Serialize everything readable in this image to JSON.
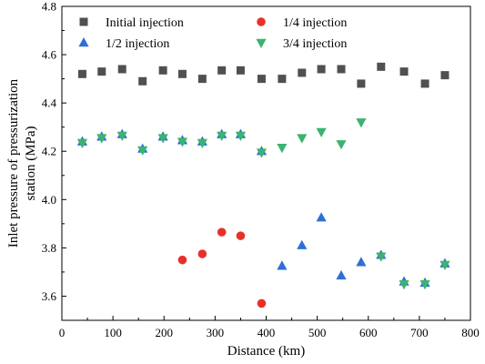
{
  "chart_data": {
    "type": "scatter",
    "xlabel": "Distance (km)",
    "ylabel": "Inlet pressure of pressurization station (MPa)",
    "xlim": [
      0,
      800
    ],
    "ylim": [
      3.5,
      4.8
    ],
    "x_ticks": [
      0,
      100,
      200,
      300,
      400,
      500,
      600,
      700,
      800
    ],
    "y_ticks": [
      3.6,
      3.8,
      4.0,
      4.2,
      4.4,
      4.6,
      4.8
    ],
    "y_tick_labels": [
      "3.6",
      "3.8",
      "4.0",
      "4.2",
      "4.4",
      "4.6",
      "4.8"
    ],
    "legend_placement": "top",
    "series": [
      {
        "name": "Initial injection",
        "marker": "square",
        "color": "#505050",
        "points": [
          [
            40,
            4.52
          ],
          [
            78,
            4.53
          ],
          [
            118,
            4.54
          ],
          [
            158,
            4.49
          ],
          [
            198,
            4.535
          ],
          [
            236,
            4.52
          ],
          [
            275,
            4.5
          ],
          [
            313,
            4.535
          ],
          [
            350,
            4.535
          ],
          [
            391,
            4.5
          ],
          [
            431,
            4.5
          ],
          [
            470,
            4.525
          ],
          [
            508,
            4.54
          ],
          [
            547,
            4.54
          ],
          [
            586,
            4.48
          ],
          [
            625,
            4.55
          ],
          [
            670,
            4.53
          ],
          [
            711,
            4.48
          ],
          [
            750,
            4.515
          ]
        ]
      },
      {
        "name": "1/4 injection",
        "marker": "circle",
        "color": "#e8302b",
        "points": [
          [
            236,
            3.75
          ],
          [
            275,
            3.775
          ],
          [
            313,
            3.865
          ],
          [
            350,
            3.85
          ],
          [
            391,
            3.57
          ]
        ]
      },
      {
        "name": "1/2 injection",
        "marker": "triangle-up",
        "color": "#2f6fd6",
        "points": [
          [
            40,
            4.24
          ],
          [
            78,
            4.26
          ],
          [
            118,
            4.27
          ],
          [
            158,
            4.21
          ],
          [
            198,
            4.26
          ],
          [
            236,
            4.245
          ],
          [
            275,
            4.24
          ],
          [
            313,
            4.27
          ],
          [
            350,
            4.27
          ],
          [
            391,
            4.2
          ],
          [
            431,
            3.725
          ],
          [
            470,
            3.81
          ],
          [
            508,
            3.925
          ],
          [
            547,
            3.685
          ],
          [
            586,
            3.74
          ],
          [
            625,
            3.77
          ],
          [
            670,
            3.66
          ],
          [
            711,
            3.655
          ],
          [
            750,
            3.735
          ]
        ]
      },
      {
        "name": "3/4 injection",
        "marker": "triangle-down",
        "color": "#3cb371",
        "points": [
          [
            40,
            4.235
          ],
          [
            78,
            4.255
          ],
          [
            118,
            4.265
          ],
          [
            158,
            4.205
          ],
          [
            198,
            4.255
          ],
          [
            236,
            4.24
          ],
          [
            275,
            4.235
          ],
          [
            313,
            4.265
          ],
          [
            350,
            4.265
          ],
          [
            391,
            4.195
          ],
          [
            431,
            4.215
          ],
          [
            470,
            4.255
          ],
          [
            508,
            4.28
          ],
          [
            547,
            4.23
          ],
          [
            586,
            4.32
          ],
          [
            625,
            3.765
          ],
          [
            670,
            3.65
          ],
          [
            711,
            3.65
          ],
          [
            750,
            3.73
          ]
        ]
      }
    ]
  }
}
